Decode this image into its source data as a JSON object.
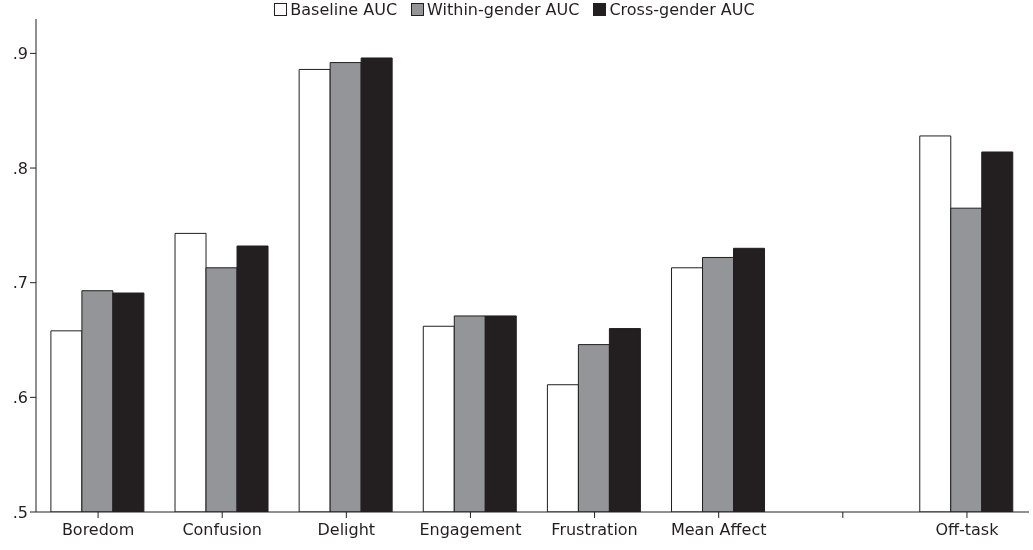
{
  "chart_data": {
    "type": "bar",
    "categories": [
      "Boredom",
      "Confusion",
      "Delight",
      "Engagement",
      "Frustration",
      "Mean Affect",
      null,
      "Off-task"
    ],
    "series": [
      {
        "name": "Baseline AUC",
        "color": "#ffffff",
        "values": [
          0.658,
          0.743,
          0.886,
          0.662,
          0.611,
          0.713,
          null,
          0.828
        ]
      },
      {
        "name": "Within-gender AUC",
        "color": "#939598",
        "values": [
          0.693,
          0.713,
          0.892,
          0.671,
          0.646,
          0.722,
          null,
          0.765
        ]
      },
      {
        "name": "Cross-gender AUC",
        "color": "#231f20",
        "values": [
          0.691,
          0.732,
          0.896,
          0.671,
          0.66,
          0.73,
          null,
          0.814
        ]
      }
    ],
    "ylim": [
      0.5,
      0.93
    ],
    "yticks": [
      {
        "value": 0.5,
        "label": ".5"
      },
      {
        "value": 0.6,
        "label": ".6"
      },
      {
        "value": 0.7,
        "label": ".7"
      },
      {
        "value": 0.8,
        "label": ".8"
      },
      {
        "value": 0.9,
        "label": ".9"
      }
    ],
    "grid": false,
    "legend": "top"
  }
}
